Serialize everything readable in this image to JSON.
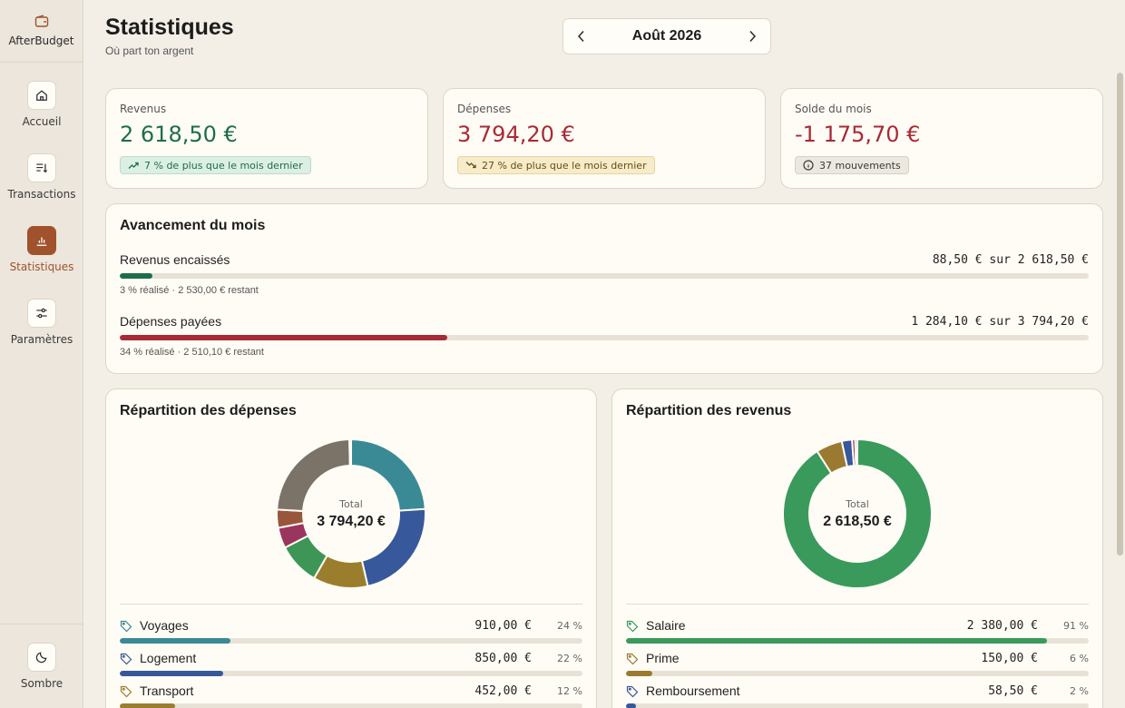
{
  "app": {
    "name": "AfterBudget"
  },
  "sidebar": {
    "items": [
      {
        "label": "Accueil",
        "icon": "home-icon",
        "active": false
      },
      {
        "label": "Transactions",
        "icon": "list-sort-icon",
        "active": false
      },
      {
        "label": "Statistiques",
        "icon": "bar-chart-icon",
        "active": true
      },
      {
        "label": "Paramètres",
        "icon": "sliders-icon",
        "active": false
      }
    ],
    "theme_toggle": {
      "label": "Sombre",
      "icon": "moon-icon"
    }
  },
  "header": {
    "title": "Statistiques",
    "subtitle": "Où part ton argent",
    "month": "Août 2026"
  },
  "kpis": {
    "revenus": {
      "label": "Revenus",
      "value": "2 618,50 €",
      "badge": "7 % de plus que le mois dernier",
      "color": "#1e6d4a"
    },
    "depenses": {
      "label": "Dépenses",
      "value": "3 794,20 €",
      "badge": "27 % de plus que le mois dernier",
      "color": "#a82a37"
    },
    "solde": {
      "label": "Solde du mois",
      "value": "-1 175,70 €",
      "badge": "37 mouvements",
      "color": "#a82a37"
    }
  },
  "progress": {
    "title": "Avancement du mois",
    "revenus": {
      "label": "Revenus encaissés",
      "amount": "88,50 € sur 2 618,50 €",
      "caption": "3 % réalisé · 2 530,00 € restant",
      "fraction": 0.034,
      "color": "#1e6d4a"
    },
    "depenses": {
      "label": "Dépenses payées",
      "amount": "1 284,10 € sur 3 794,20 €",
      "caption": "34 % réalisé · 2 510,10 € restant",
      "fraction": 0.338,
      "color": "#a82a37"
    }
  },
  "depenses_breakdown": {
    "title": "Répartition des dépenses",
    "total_label": "Total",
    "total_value": "3 794,20 €",
    "categories": [
      {
        "name": "Voyages",
        "amount": "910,00 €",
        "pct": "24 %",
        "value": 910.0,
        "color": "#3a8a96"
      },
      {
        "name": "Logement",
        "amount": "850,00 €",
        "pct": "22 %",
        "value": 850.0,
        "color": "#37589a"
      },
      {
        "name": "Transport",
        "amount": "452,00 €",
        "pct": "12 %",
        "value": 452.0,
        "color": "#9a7e2e"
      }
    ],
    "other_slices": [
      {
        "value": 348,
        "color": "#3e9656"
      },
      {
        "value": 170,
        "color": "#9a3560"
      },
      {
        "value": 150,
        "color": "#98573a"
      },
      {
        "value": 900,
        "color": "#7b7268"
      },
      {
        "value": 14,
        "color": "#bdb3a4"
      }
    ]
  },
  "revenus_breakdown": {
    "title": "Répartition des revenus",
    "total_label": "Total",
    "total_value": "2 618,50 €",
    "categories": [
      {
        "name": "Salaire",
        "amount": "2 380,00 €",
        "pct": "91 %",
        "value": 2380.0,
        "color": "#3a9a5c"
      },
      {
        "name": "Prime",
        "amount": "150,00 €",
        "pct": "6 %",
        "value": 150.0,
        "color": "#9a7a30"
      },
      {
        "name": "Remboursement",
        "amount": "58,50 €",
        "pct": "2 %",
        "value": 58.5,
        "color": "#37589a"
      }
    ],
    "other_slices": [
      {
        "value": 18,
        "color": "#9a3560"
      },
      {
        "value": 12,
        "color": "#7b7268"
      }
    ]
  }
}
